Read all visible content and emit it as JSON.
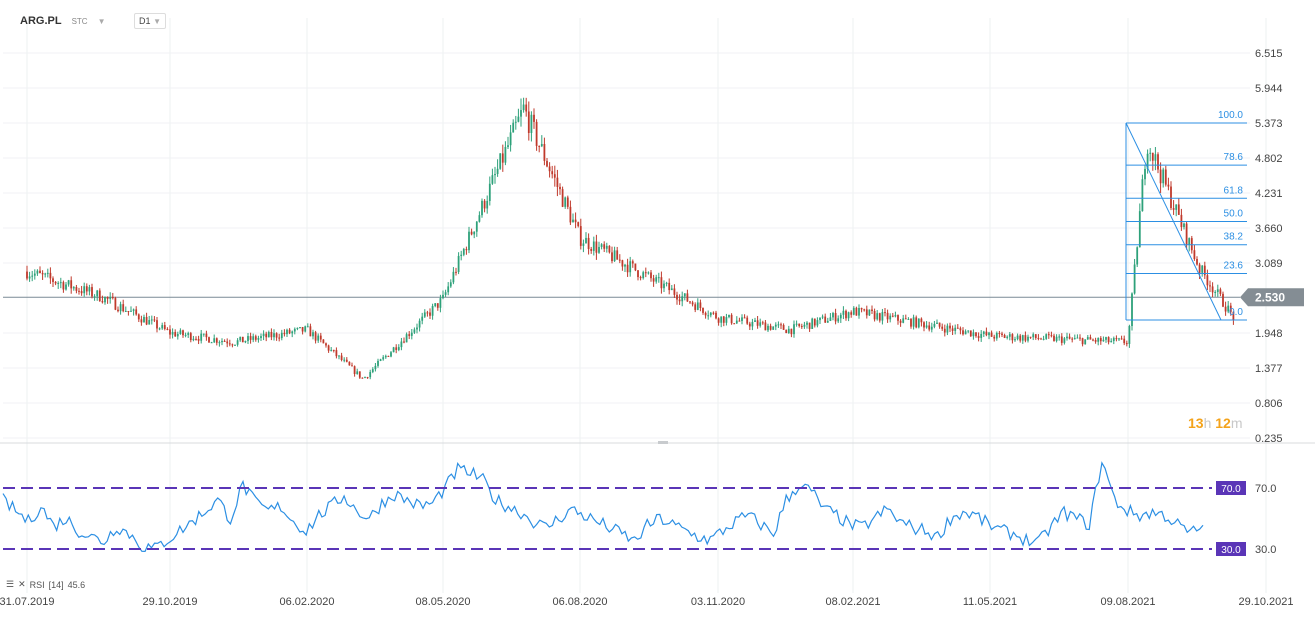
{
  "header": {
    "symbol": "ARG.PL",
    "exchange": "STC",
    "timeframe": "D1"
  },
  "rsi_legend": {
    "name": "RSI",
    "params": "[14]",
    "value": "45.6"
  },
  "timer": {
    "hours": "13",
    "h": "h",
    "minutes": "12",
    "m": "m"
  },
  "colors": {
    "up": "#2da17a",
    "down": "#c0392b",
    "rsi": "#2c8fe3",
    "band": "#5a35b7",
    "fib": "#2c8fe3",
    "last": "#7a8a95"
  },
  "chart_data": [
    {
      "type": "candlestick",
      "title": "",
      "x_ticks": [
        "31.07.2019",
        "29.10.2019",
        "06.02.2020",
        "08.05.2020",
        "06.08.2020",
        "03.11.2020",
        "08.02.2021",
        "11.05.2021",
        "09.08.2021",
        "29.10.2021"
      ],
      "y_ticks": [
        "6.515",
        "5.944",
        "5.373",
        "4.802",
        "4.231",
        "3.660",
        "3.089",
        "2.530",
        "1.948",
        "1.377",
        "0.806",
        "0.235"
      ],
      "ylim": [
        0.235,
        6.515
      ],
      "last_price": "2.530",
      "close_series_approx": [
        {
          "date": "31.07.2019",
          "close": 2.95
        },
        {
          "date": "15.09.2019",
          "close": 2.55
        },
        {
          "date": "29.10.2019",
          "close": 1.95
        },
        {
          "date": "15.12.2019",
          "close": 1.8
        },
        {
          "date": "06.02.2020",
          "close": 2.0
        },
        {
          "date": "15.03.2020",
          "close": 1.2
        },
        {
          "date": "08.05.2020",
          "close": 2.5
        },
        {
          "date": "30.06.2020",
          "close": 5.6
        },
        {
          "date": "06.08.2020",
          "close": 3.5
        },
        {
          "date": "03.11.2020",
          "close": 2.2
        },
        {
          "date": "25.12.2020",
          "close": 2.0
        },
        {
          "date": "08.02.2021",
          "close": 2.3
        },
        {
          "date": "11.05.2021",
          "close": 1.9
        },
        {
          "date": "09.08.2021",
          "close": 1.8
        },
        {
          "date": "20.08.2021",
          "close": 5.1
        },
        {
          "date": "20.09.2021",
          "close": 3.0
        },
        {
          "date": "10.10.2021",
          "close": 2.2
        }
      ],
      "fibonacci": {
        "high": 5.373,
        "low": 2.16,
        "levels": [
          "100.0",
          "78.6",
          "61.8",
          "50.0",
          "38.2",
          "23.6",
          "0.0"
        ],
        "ratios": [
          1.0,
          0.786,
          0.618,
          0.5,
          0.382,
          0.236,
          0.0
        ]
      }
    },
    {
      "type": "line",
      "title": "",
      "series": [
        {
          "name": "RSI [14]",
          "last": 45.6
        }
      ],
      "ylim": [
        0,
        100
      ],
      "levels": [
        "70.0",
        "30.0"
      ],
      "level_values": [
        70,
        30
      ],
      "values_approx": [
        62,
        55,
        48,
        58,
        45,
        50,
        42,
        38,
        35,
        45,
        40,
        32,
        30,
        36,
        42,
        48,
        55,
        62,
        50,
        72,
        60,
        55,
        58,
        48,
        42,
        52,
        58,
        65,
        55,
        50,
        60,
        66,
        62,
        58,
        60,
        70,
        82,
        80,
        75,
        62,
        58,
        54,
        48,
        44,
        50,
        56,
        52,
        48,
        44,
        40,
        35,
        45,
        50,
        46,
        42,
        38,
        36,
        42,
        48,
        52,
        46,
        40,
        62,
        72,
        68,
        56,
        52,
        46,
        44,
        50,
        56,
        48,
        44,
        42,
        38,
        50,
        54,
        52,
        46,
        42,
        40,
        36,
        34,
        45,
        54,
        50,
        46,
        88,
        62,
        55,
        52,
        54,
        52,
        46,
        40,
        45.6
      ]
    }
  ]
}
